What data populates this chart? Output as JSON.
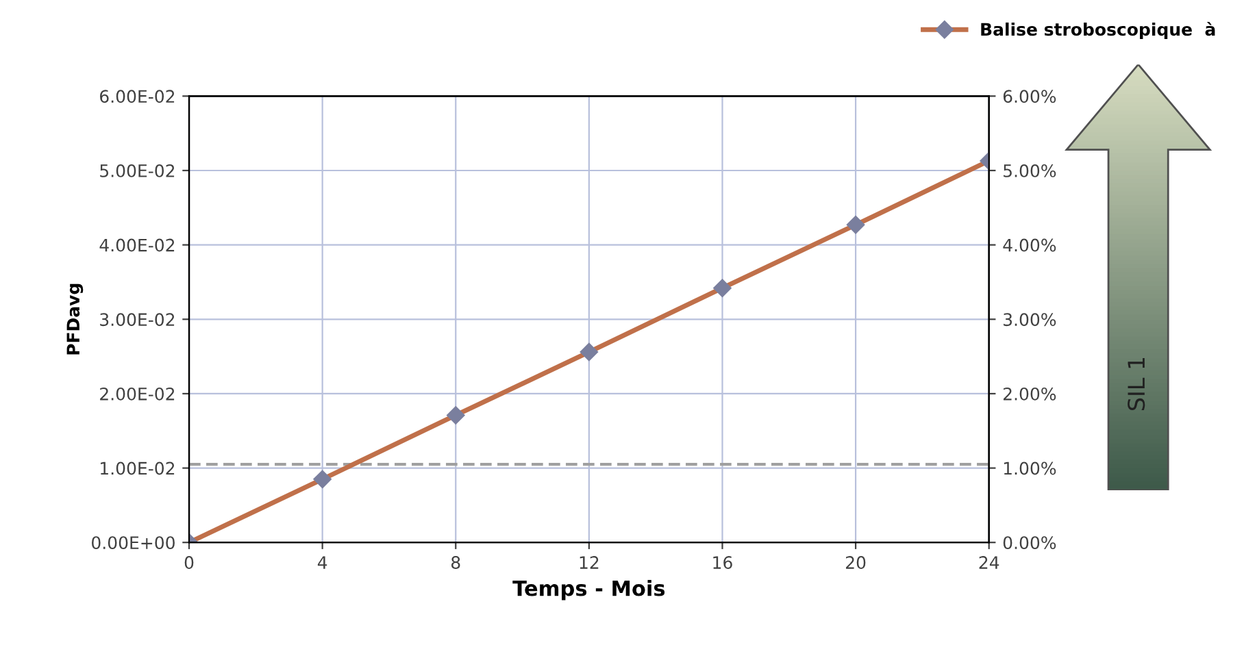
{
  "chart_data": {
    "type": "line",
    "xlabel": "Temps - Mois",
    "ylabel": "PFDavg",
    "x": [
      0,
      4,
      8,
      12,
      16,
      20,
      24
    ],
    "series": [
      {
        "name": "Balise stroboscopique  à",
        "color": "#c0704a",
        "values": [
          0,
          0.0085,
          0.0171,
          0.0256,
          0.0342,
          0.0427,
          0.0513
        ]
      }
    ],
    "xlim": [
      0,
      24
    ],
    "xticks": [
      0,
      4,
      8,
      12,
      16,
      20,
      24
    ],
    "ylim": [
      0,
      0.06
    ],
    "yticks": [
      {
        "value": 0,
        "label": "0.00E+00"
      },
      {
        "value": 0.01,
        "label": "1.00E-02"
      },
      {
        "value": 0.02,
        "label": "2.00E-02"
      },
      {
        "value": 0.03,
        "label": "3.00E-02"
      },
      {
        "value": 0.04,
        "label": "4.00E-02"
      },
      {
        "value": 0.05,
        "label": "5.00E-02"
      },
      {
        "value": 0.06,
        "label": "6.00E-02"
      }
    ],
    "y2lim": [
      0,
      6
    ],
    "y2ticks": [
      {
        "value": 0,
        "label": "0.00%"
      },
      {
        "value": 1,
        "label": "1.00%"
      },
      {
        "value": 2,
        "label": "2.00%"
      },
      {
        "value": 3,
        "label": "3.00%"
      },
      {
        "value": 4,
        "label": "4.00%"
      },
      {
        "value": 5,
        "label": "5.00%"
      },
      {
        "value": 6,
        "label": "6.00%"
      }
    ],
    "ref_lines": [
      {
        "axis": "y",
        "value": 0.0105,
        "color": "#a0a0a0",
        "line_style": "dashed"
      }
    ],
    "annotations": [
      "SIL 1"
    ],
    "grid": true,
    "legend": "top right",
    "marker": "diamond",
    "line_style": "solid"
  }
}
